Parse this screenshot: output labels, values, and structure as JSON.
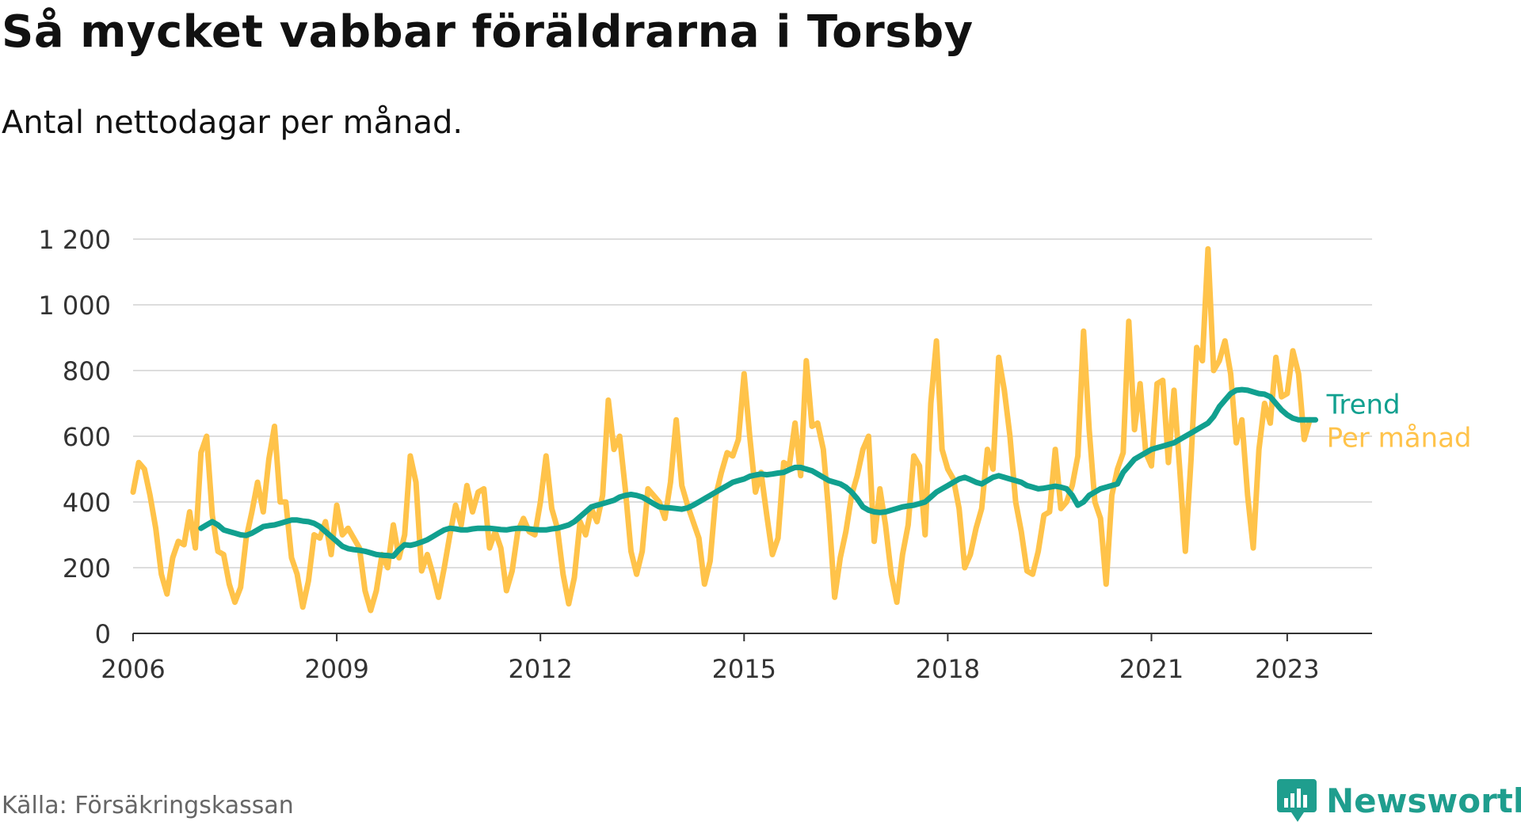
{
  "title": "Så mycket vabbar föräldrarna i Torsby",
  "subtitle": "Antal nettodagar per månad.",
  "source": "Källa: Försäkringskassan",
  "brand": {
    "name": "Newsworthy",
    "icon": "newsworthy-logo-icon"
  },
  "colors": {
    "per_month": "#ffc34a",
    "trend": "#11a08f",
    "grid": "#dddddd",
    "axis": "#333333",
    "text": "#333333"
  },
  "chart_data": {
    "type": "line",
    "xlim": [
      2006.0,
      2024.25
    ],
    "ylim": [
      0,
      1200
    ],
    "y_ticks": [
      0,
      200,
      400,
      600,
      800,
      1000,
      1200
    ],
    "y_tick_labels": [
      "0",
      "200",
      "400",
      "600",
      "800",
      "1 000",
      "1 200"
    ],
    "x_ticks": [
      2006,
      2009,
      2012,
      2015,
      2018,
      2021,
      2023
    ],
    "x_tick_labels": [
      "2006",
      "2009",
      "2012",
      "2015",
      "2018",
      "2021",
      "2023"
    ],
    "grid": true,
    "legend": "inline labels at right end of lines",
    "series": [
      {
        "name": "Per månad",
        "color": "#ffc34a",
        "start": "2006-01",
        "values": [
          430,
          520,
          500,
          420,
          320,
          180,
          120,
          230,
          280,
          270,
          370,
          260,
          550,
          600,
          360,
          250,
          240,
          150,
          95,
          140,
          290,
          370,
          460,
          370,
          530,
          630,
          400,
          400,
          230,
          180,
          80,
          160,
          300,
          290,
          340,
          240,
          390,
          300,
          320,
          290,
          260,
          130,
          70,
          130,
          240,
          200,
          330,
          230,
          300,
          540,
          460,
          190,
          240,
          180,
          110,
          200,
          300,
          390,
          330,
          450,
          370,
          430,
          440,
          260,
          310,
          260,
          130,
          190,
          310,
          350,
          310,
          300,
          400,
          540,
          380,
          320,
          180,
          90,
          170,
          340,
          300,
          380,
          340,
          420,
          710,
          560,
          600,
          440,
          250,
          180,
          250,
          440,
          420,
          400,
          350,
          460,
          650,
          450,
          390,
          340,
          290,
          150,
          220,
          420,
          490,
          550,
          540,
          590,
          790,
          600,
          430,
          490,
          360,
          240,
          290,
          520,
          510,
          640,
          480,
          830,
          630,
          640,
          560,
          360,
          110,
          230,
          310,
          420,
          480,
          560,
          600,
          280,
          440,
          330,
          180,
          95,
          240,
          330,
          540,
          510,
          300,
          700,
          890,
          560,
          500,
          470,
          380,
          200,
          240,
          320,
          380,
          560,
          500,
          840,
          740,
          600,
          400,
          310,
          190,
          180,
          250,
          360,
          370,
          560,
          380,
          400,
          450,
          540,
          920,
          620,
          400,
          350,
          150,
          420,
          500,
          550,
          950,
          620,
          760,
          550,
          510,
          760,
          770,
          520,
          740,
          500,
          250,
          530,
          870,
          830,
          1170,
          800,
          830,
          890,
          790,
          580,
          650,
          420,
          260,
          560,
          700,
          640,
          840,
          720,
          730,
          860,
          790,
          590,
          650
        ]
      },
      {
        "name": "Trend",
        "color": "#11a08f",
        "start": "2007-01",
        "values": [
          320,
          330,
          340,
          330,
          315,
          310,
          305,
          300,
          298,
          305,
          315,
          325,
          328,
          330,
          335,
          340,
          345,
          345,
          342,
          340,
          335,
          325,
          310,
          295,
          280,
          265,
          258,
          255,
          253,
          250,
          245,
          240,
          238,
          237,
          235,
          255,
          270,
          268,
          272,
          278,
          285,
          295,
          305,
          315,
          320,
          318,
          315,
          315,
          318,
          320,
          320,
          320,
          318,
          316,
          315,
          318,
          320,
          320,
          318,
          316,
          315,
          315,
          318,
          320,
          325,
          330,
          340,
          355,
          370,
          385,
          390,
          395,
          400,
          405,
          415,
          420,
          423,
          420,
          415,
          405,
          395,
          385,
          383,
          382,
          380,
          378,
          382,
          390,
          400,
          410,
          420,
          430,
          440,
          450,
          460,
          465,
          470,
          478,
          482,
          485,
          483,
          485,
          488,
          490,
          498,
          505,
          505,
          500,
          495,
          485,
          475,
          465,
          460,
          455,
          445,
          430,
          410,
          385,
          375,
          370,
          368,
          370,
          375,
          380,
          385,
          388,
          390,
          395,
          400,
          415,
          430,
          440,
          450,
          460,
          470,
          475,
          468,
          460,
          455,
          465,
          475,
          480,
          475,
          470,
          465,
          460,
          450,
          445,
          440,
          442,
          445,
          448,
          445,
          440,
          420,
          390,
          400,
          420,
          430,
          440,
          445,
          450,
          455,
          490,
          510,
          530,
          540,
          550,
          560,
          565,
          570,
          575,
          580,
          590,
          600,
          610,
          620,
          630,
          640,
          660,
          690,
          710,
          730,
          740,
          742,
          740,
          735,
          730,
          728,
          720,
          700,
          680,
          665,
          655,
          650,
          650,
          650,
          650
        ]
      }
    ]
  }
}
